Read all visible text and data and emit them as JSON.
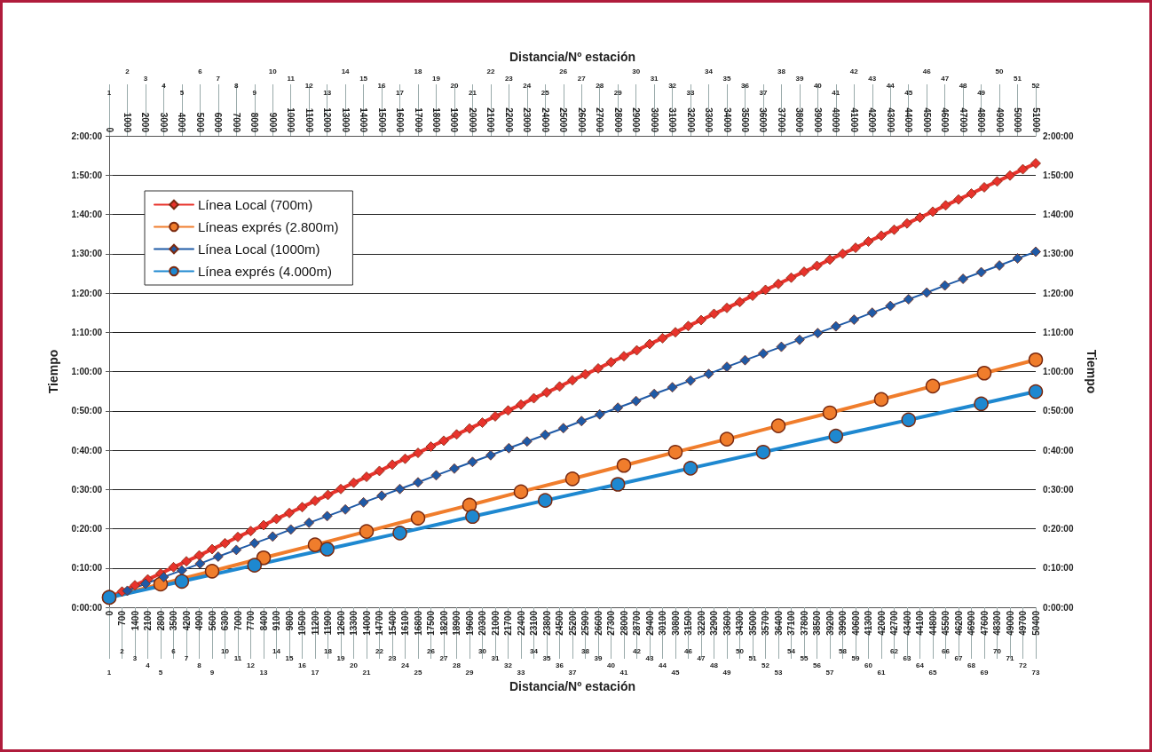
{
  "chart_data": {
    "type": "line",
    "xlabel": "Distancia/Nº estación",
    "x2label": "Distancia/Nº estación",
    "ylabel": "Tiempo",
    "y2label": "Tiempo",
    "grid": "y",
    "legend": "top left",
    "xlim": [
      0,
      50400
    ],
    "xticks": [
      0,
      700,
      1400,
      2100,
      2800,
      3500,
      4200,
      4900,
      5600,
      6300,
      7000,
      7700,
      8400,
      9100,
      9800,
      10500,
      11200,
      11900,
      12600,
      13300,
      14000,
      14700,
      15400,
      16100,
      16800,
      17500,
      18200,
      18900,
      19600,
      20300,
      21000,
      21700,
      22400,
      23100,
      23800,
      24500,
      25200,
      25900,
      26600,
      27300,
      28000,
      28700,
      29400,
      30100,
      30800,
      31500,
      32200,
      32900,
      33600,
      34300,
      35000,
      35700,
      36400,
      37100,
      37800,
      38500,
      39200,
      39900,
      40600,
      41300,
      42000,
      42700,
      43400,
      44100,
      44800,
      45500,
      46200,
      46900,
      47600,
      48300,
      49000,
      49700,
      50400
    ],
    "annotations": [
      "1",
      "2",
      "3",
      "4",
      "5",
      "6",
      "7",
      "8",
      "9",
      "10",
      "11",
      "12",
      "13",
      "14",
      "15",
      "16",
      "17",
      "18",
      "19",
      "20",
      "21",
      "22",
      "23",
      "24",
      "25",
      "26",
      "27",
      "28",
      "29",
      "30",
      "31",
      "32",
      "33",
      "34",
      "35",
      "36",
      "37",
      "38",
      "39",
      "40",
      "41",
      "42",
      "43",
      "44",
      "45",
      "46",
      "47",
      "48",
      "49",
      "50",
      "51",
      "52",
      "53",
      "54",
      "55",
      "56",
      "57",
      "58",
      "59",
      "60",
      "61",
      "62",
      "63",
      "64",
      "65",
      "66",
      "67",
      "68",
      "69",
      "70",
      "71",
      "72",
      "73",
      "1",
      "2",
      "3",
      "4",
      "5",
      "6",
      "7",
      "8",
      "9",
      "10",
      "11",
      "12",
      "13",
      "14",
      "15",
      "16",
      "17",
      "18",
      "19",
      "20",
      "21",
      "22",
      "23",
      "24",
      "25",
      "26",
      "27",
      "28",
      "29",
      "30",
      "31",
      "32",
      "33",
      "34",
      "35",
      "36",
      "37",
      "38",
      "39",
      "40",
      "41",
      "42",
      "43",
      "44",
      "45",
      "46",
      "47",
      "48",
      "49",
      "50",
      "51",
      "52"
    ],
    "x2lim": [
      0,
      51000
    ],
    "x2ticks": [
      0,
      1000,
      2000,
      3000,
      4000,
      5000,
      6000,
      7000,
      8000,
      9000,
      10000,
      11000,
      12000,
      13000,
      14000,
      15000,
      16000,
      17000,
      18000,
      19000,
      20000,
      21000,
      22000,
      23000,
      24000,
      25000,
      26000,
      27000,
      28000,
      29000,
      30000,
      31000,
      32000,
      33000,
      34000,
      35000,
      36000,
      37000,
      38000,
      39000,
      40000,
      41000,
      42000,
      43000,
      44000,
      45000,
      46000,
      47000,
      48000,
      49000,
      50000,
      51000
    ],
    "ylim": [
      0,
      120
    ],
    "yticks": [
      {
        "value": 0,
        "label": "0:00:00"
      },
      {
        "value": 10,
        "label": "0:10:00"
      },
      {
        "value": 20,
        "label": "0:20:00"
      },
      {
        "value": 30,
        "label": "0:30:00"
      },
      {
        "value": 40,
        "label": "0:40:00"
      },
      {
        "value": 50,
        "label": "0:50:00"
      },
      {
        "value": 60,
        "label": "1:00:00"
      },
      {
        "value": 70,
        "label": "1:10:00"
      },
      {
        "value": 80,
        "label": "1:20:00"
      },
      {
        "value": 90,
        "label": "1:30:00"
      },
      {
        "value": 100,
        "label": "1:40:00"
      },
      {
        "value": 110,
        "label": "1:50:00"
      },
      {
        "value": 120,
        "label": "2:00:00"
      }
    ],
    "y2lim": [
      0,
      120
    ],
    "y2ticks": [
      {
        "value": 0,
        "label": "0:00:00"
      },
      {
        "value": 10,
        "label": "0:10:00"
      },
      {
        "value": 20,
        "label": "0:20:00"
      },
      {
        "value": 30,
        "label": "0:30:00"
      },
      {
        "value": 40,
        "label": "0:40:00"
      },
      {
        "value": 50,
        "label": "0:50:00"
      },
      {
        "value": 60,
        "label": "1:00:00"
      },
      {
        "value": 70,
        "label": "1:10:00"
      },
      {
        "value": 80,
        "label": "1:20:00"
      },
      {
        "value": 90,
        "label": "1:30:00"
      },
      {
        "value": 100,
        "label": "1:40:00"
      },
      {
        "value": 110,
        "label": "1:50:00"
      },
      {
        "value": 120,
        "label": "2:00:00"
      }
    ],
    "series": [
      {
        "name": "Línea Local (700m)",
        "color": "#e8332c",
        "marker": "diamond",
        "x": [
          0,
          700,
          1400,
          2100,
          2800,
          3500,
          4200,
          4900,
          5600,
          6300,
          7000,
          7700,
          8400,
          9100,
          9800,
          10500,
          11200,
          11900,
          12600,
          13300,
          14000,
          14700,
          15400,
          16100,
          16800,
          17500,
          18200,
          18900,
          19600,
          20300,
          21000,
          21700,
          22400,
          23100,
          23800,
          24500,
          25200,
          25900,
          26600,
          27300,
          28000,
          28700,
          29400,
          30100,
          30800,
          31500,
          32200,
          32900,
          33600,
          34300,
          35000,
          35700,
          36400,
          37100,
          37800,
          38500,
          39200,
          39900,
          40600,
          41300,
          42000,
          42700,
          43400,
          44100,
          44800,
          45500,
          46200,
          46900,
          47600,
          48300,
          49000,
          49700,
          50400
        ],
        "values": [
          2.5,
          4.0,
          5.6,
          7.1,
          8.6,
          10.2,
          11.7,
          13.2,
          14.8,
          16.3,
          17.9,
          19.4,
          20.9,
          22.5,
          24.0,
          25.5,
          27.1,
          28.6,
          30.1,
          31.7,
          33.2,
          34.7,
          36.3,
          37.8,
          39.3,
          40.9,
          42.4,
          44.0,
          45.5,
          47.0,
          48.6,
          50.1,
          51.6,
          53.2,
          54.7,
          56.2,
          57.8,
          59.3,
          60.8,
          62.4,
          63.9,
          65.4,
          67.0,
          68.5,
          70.0,
          71.6,
          73.1,
          74.7,
          76.2,
          77.7,
          79.3,
          80.8,
          82.3,
          83.9,
          85.4,
          86.9,
          88.5,
          90.0,
          91.5,
          93.1,
          94.6,
          96.1,
          97.7,
          99.2,
          100.7,
          102.3,
          103.8,
          105.3,
          106.9,
          108.4,
          109.9,
          111.5,
          113.0
        ]
      },
      {
        "name": "Líneas exprés (2.800m)",
        "color": "#f07d2c",
        "marker": "circle",
        "x": [
          0,
          2800,
          5600,
          8400,
          11200,
          14000,
          16800,
          19600,
          22400,
          25200,
          28000,
          30800,
          33600,
          36400,
          39200,
          42000,
          44800,
          47600,
          50400
        ],
        "values": [
          2.5,
          5.9,
          9.2,
          12.6,
          15.9,
          19.3,
          22.7,
          26.0,
          29.4,
          32.7,
          36.1,
          39.5,
          42.8,
          46.2,
          49.5,
          52.9,
          56.3,
          59.6,
          63.0
        ]
      },
      {
        "name": "Línea Local (1000m)",
        "color": "#1f5aa6",
        "marker": "diamond",
        "axis": "x2",
        "x": [
          0,
          1000,
          2000,
          3000,
          4000,
          5000,
          6000,
          7000,
          8000,
          9000,
          10000,
          11000,
          12000,
          13000,
          14000,
          15000,
          16000,
          17000,
          18000,
          19000,
          20000,
          21000,
          22000,
          23000,
          24000,
          25000,
          26000,
          27000,
          28000,
          29000,
          30000,
          31000,
          32000,
          33000,
          34000,
          35000,
          36000,
          37000,
          38000,
          39000,
          40000,
          41000,
          42000,
          43000,
          44000,
          45000,
          46000,
          47000,
          48000,
          49000,
          50000,
          51000
        ],
        "values": [
          2.5,
          4.2,
          6.0,
          7.7,
          9.4,
          11.1,
          12.9,
          14.6,
          16.3,
          18.0,
          19.8,
          21.5,
          23.2,
          24.9,
          26.7,
          28.4,
          30.1,
          31.8,
          33.6,
          35.3,
          37.0,
          38.7,
          40.5,
          42.2,
          43.9,
          45.6,
          47.4,
          49.1,
          50.8,
          52.5,
          54.3,
          56.0,
          57.7,
          59.4,
          61.2,
          62.9,
          64.6,
          66.3,
          68.1,
          69.8,
          71.5,
          73.2,
          75.0,
          76.7,
          78.4,
          80.1,
          81.9,
          83.6,
          85.3,
          87.0,
          88.8,
          90.5
        ]
      },
      {
        "name": "Línea exprés (4.000m)",
        "color": "#1e88d0",
        "marker": "circle",
        "axis": "x2",
        "x": [
          0,
          4000,
          8000,
          12000,
          16000,
          20000,
          24000,
          28000,
          32000,
          36000,
          40000,
          44000,
          48000,
          51000
        ],
        "values": [
          2.5,
          6.6,
          10.7,
          14.8,
          18.9,
          23.1,
          27.2,
          31.3,
          35.4,
          39.5,
          43.6,
          47.7,
          51.8,
          54.9
        ]
      }
    ]
  }
}
